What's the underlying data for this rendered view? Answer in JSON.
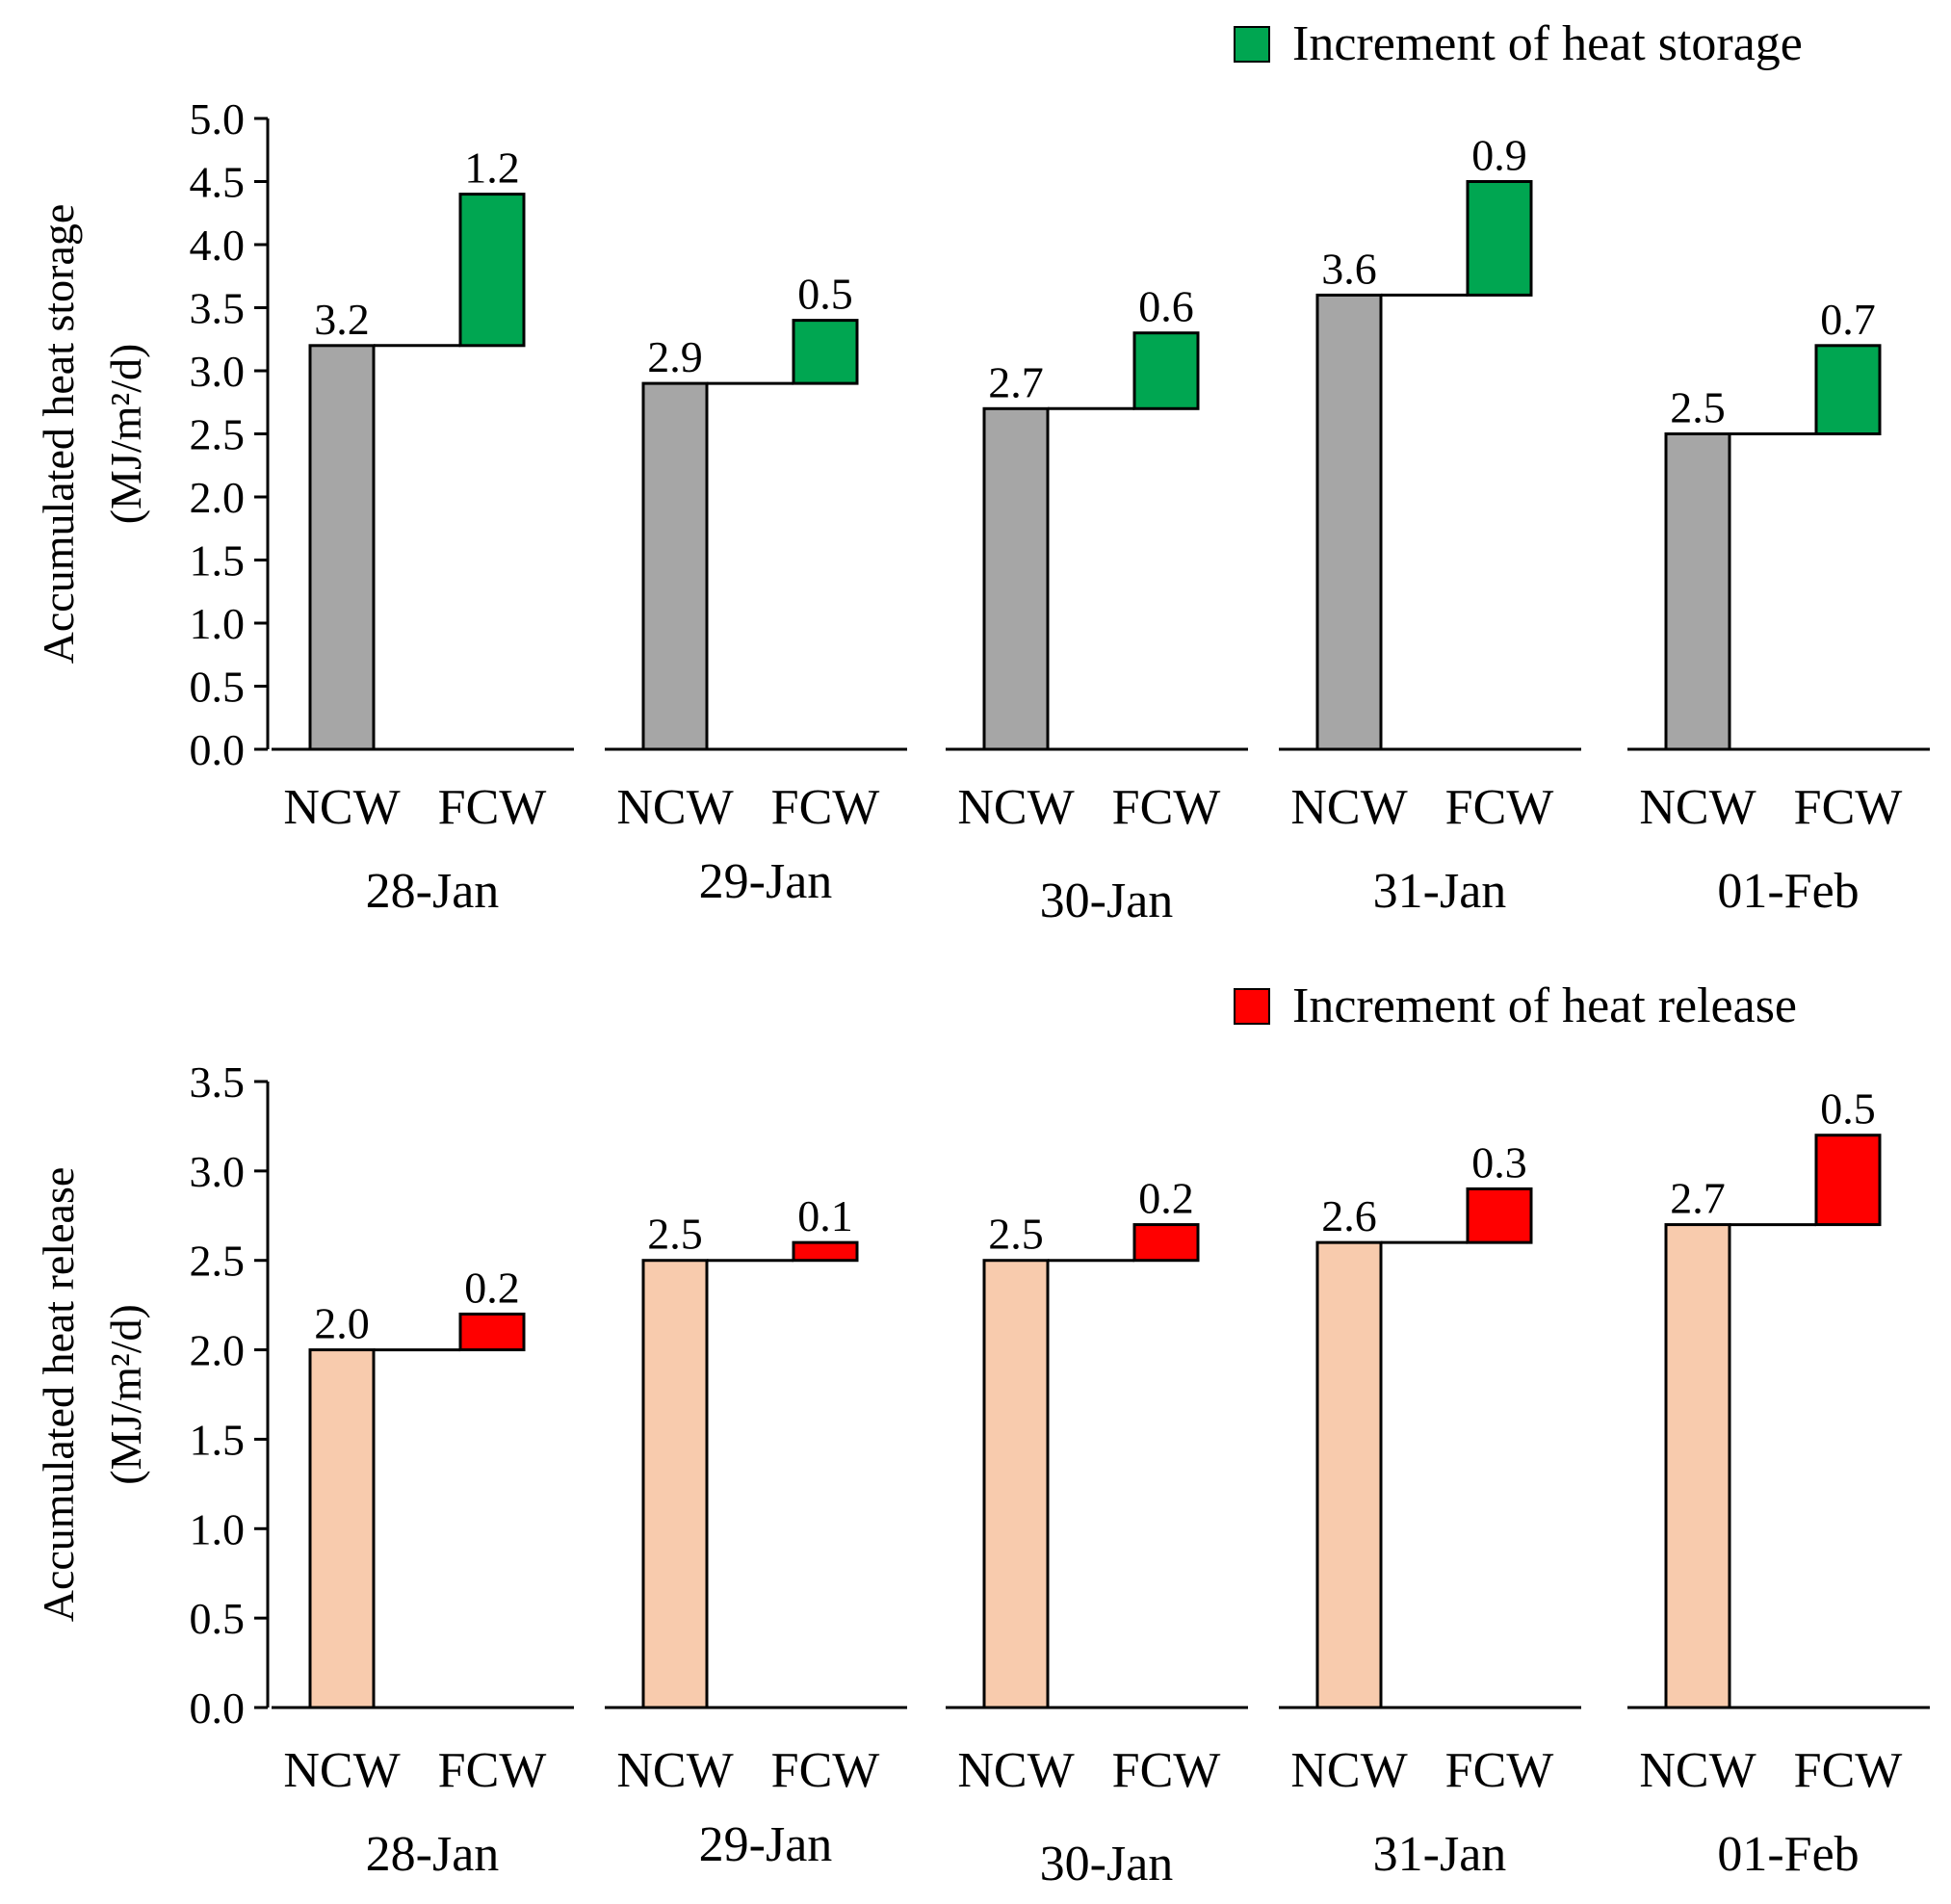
{
  "chart_data": [
    {
      "type": "bar",
      "subtype": "waterfall-increment",
      "title": "",
      "ylabel_line1": "Accumulated heat storage",
      "ylabel_line2": "(MJ/m²/d)",
      "ylim": [
        0,
        5.0
      ],
      "yticks": [
        "0.0",
        "0.5",
        "1.0",
        "1.5",
        "2.0",
        "2.5",
        "3.0",
        "3.5",
        "4.0",
        "4.5",
        "5.0"
      ],
      "legend": {
        "label": "Increment of heat storage",
        "color": "#00a651",
        "position": "top-right"
      },
      "base_color": "#a6a6a6",
      "increment_color": "#00a651",
      "categories": [
        "NCW",
        "FCW"
      ],
      "groups": [
        {
          "date": "28-Jan",
          "base": 3.2,
          "increment": 1.2,
          "base_label": "3.2",
          "increment_label": "1.2"
        },
        {
          "date": "29-Jan",
          "base": 2.9,
          "increment": 0.5,
          "base_label": "2.9",
          "increment_label": "0.5"
        },
        {
          "date": "30-Jan",
          "base": 2.7,
          "increment": 0.6,
          "base_label": "2.7",
          "increment_label": "0.6"
        },
        {
          "date": "31-Jan",
          "base": 3.6,
          "increment": 0.9,
          "base_label": "3.6",
          "increment_label": "0.9"
        },
        {
          "date": "01-Feb",
          "base": 2.5,
          "increment": 0.7,
          "base_label": "2.5",
          "increment_label": "0.7"
        }
      ]
    },
    {
      "type": "bar",
      "subtype": "waterfall-increment",
      "title": "",
      "ylabel_line1": "Accumulated heat release",
      "ylabel_line2": "(MJ/m²/d)",
      "ylim": [
        0,
        3.5
      ],
      "yticks": [
        "0.0",
        "0.5",
        "1.0",
        "1.5",
        "2.0",
        "2.5",
        "3.0",
        "3.5"
      ],
      "legend": {
        "label": "Increment of heat release",
        "color": "#ff0000",
        "position": "top-right"
      },
      "base_color": "#f8cbad",
      "increment_color": "#ff0000",
      "categories": [
        "NCW",
        "FCW"
      ],
      "groups": [
        {
          "date": "28-Jan",
          "base": 2.0,
          "increment": 0.2,
          "base_label": "2.0",
          "increment_label": "0.2"
        },
        {
          "date": "29-Jan",
          "base": 2.5,
          "increment": 0.1,
          "base_label": "2.5",
          "increment_label": "0.1"
        },
        {
          "date": "30-Jan",
          "base": 2.5,
          "increment": 0.2,
          "base_label": "2.5",
          "increment_label": "0.2"
        },
        {
          "date": "31-Jan",
          "base": 2.6,
          "increment": 0.3,
          "base_label": "2.6",
          "increment_label": "0.3"
        },
        {
          "date": "01-Feb",
          "base": 2.7,
          "increment": 0.5,
          "base_label": "2.7",
          "increment_label": "0.5"
        }
      ]
    }
  ]
}
